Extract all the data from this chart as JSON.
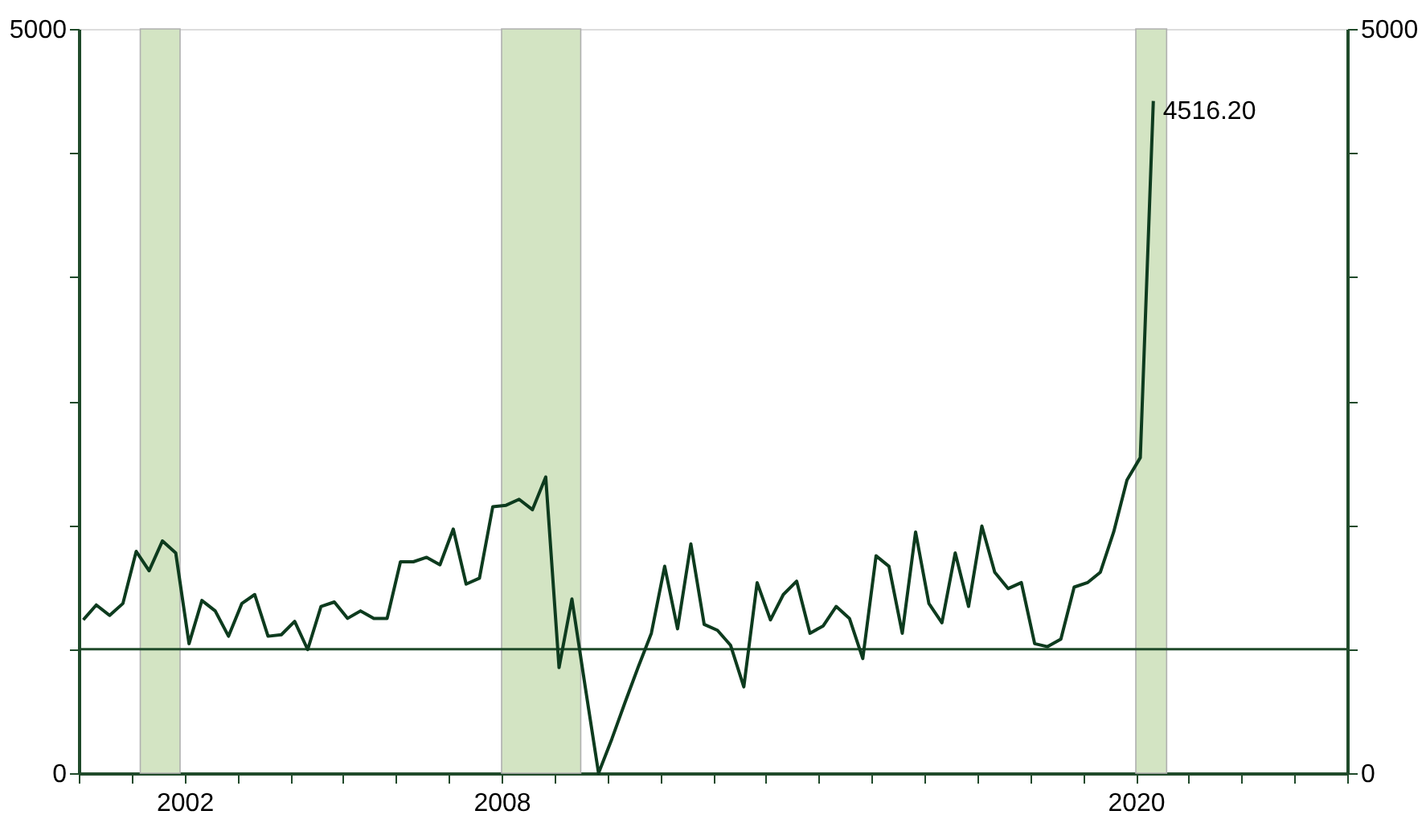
{
  "chart_data": {
    "type": "line",
    "x": [
      "2000-02",
      "2000-05",
      "2000-08",
      "2000-11",
      "2001-02",
      "2001-05",
      "2001-08",
      "2001-11",
      "2002-02",
      "2002-05",
      "2002-08",
      "2002-11",
      "2003-02",
      "2003-05",
      "2003-08",
      "2003-11",
      "2004-02",
      "2004-05",
      "2004-08",
      "2004-11",
      "2005-02",
      "2005-05",
      "2005-08",
      "2005-11",
      "2006-02",
      "2006-05",
      "2006-08",
      "2006-11",
      "2007-02",
      "2007-05",
      "2007-08",
      "2007-11",
      "2008-02",
      "2008-05",
      "2008-08",
      "2008-11",
      "2009-02",
      "2009-05",
      "2009-08",
      "2009-11",
      "2010-02",
      "2010-05",
      "2010-08",
      "2010-11",
      "2011-02",
      "2011-05",
      "2011-08",
      "2011-11",
      "2012-02",
      "2012-05",
      "2012-08",
      "2012-11",
      "2013-02",
      "2013-05",
      "2013-08",
      "2013-11",
      "2014-02",
      "2014-05",
      "2014-08",
      "2014-11",
      "2015-02",
      "2015-05",
      "2015-08",
      "2015-11",
      "2016-02",
      "2016-05",
      "2016-08",
      "2016-11",
      "2017-02",
      "2017-05",
      "2017-08",
      "2017-11",
      "2018-02",
      "2018-05",
      "2018-08",
      "2018-11",
      "2019-02",
      "2019-05",
      "2019-08",
      "2019-11",
      "2020-02",
      "2020-05"
    ],
    "series": [
      {
        "color": "#0d3b1e",
        "values": [
          1030,
          1130,
          1060,
          1140,
          1490,
          1360,
          1560,
          1480,
          870,
          1160,
          1090,
          920,
          1140,
          1200,
          920,
          930,
          1020,
          830,
          1120,
          1150,
          1040,
          1090,
          1040,
          1040,
          1420,
          1420,
          1450,
          1400,
          1640,
          1270,
          1310,
          1790,
          1800,
          1840,
          1770,
          1990,
          710,
          1170,
          580,
          0,
          230,
          470,
          710,
          940,
          1390,
          970,
          1540,
          1000,
          960,
          860,
          580,
          1280,
          1030,
          1200,
          1290,
          940,
          990,
          1120,
          1040,
          770,
          1460,
          1390,
          940,
          1620,
          1140,
          1010,
          1480,
          1120,
          1660,
          1350,
          1240,
          1280,
          870,
          850,
          900,
          1250,
          1280,
          1350,
          1620,
          1970,
          2120,
          4516.2
        ]
      }
    ],
    "xlim": [
      "2000-01-01",
      "2024-01-01"
    ],
    "xticks": [
      {
        "value": "2000",
        "label": null
      },
      {
        "value": "2001",
        "label": null
      },
      "2002",
      {
        "value": "2003",
        "label": null
      },
      {
        "value": "2004",
        "label": null
      },
      {
        "value": "2005",
        "label": null
      },
      {
        "value": "2006",
        "label": null
      },
      {
        "value": "2007",
        "label": null
      },
      "2008",
      {
        "value": "2009",
        "label": null
      },
      {
        "value": "2010",
        "label": null
      },
      {
        "value": "2011",
        "label": null
      },
      {
        "value": "2012",
        "label": null
      },
      {
        "value": "2013",
        "label": null
      },
      {
        "value": "2014",
        "label": null
      },
      {
        "value": "2015",
        "label": null
      },
      {
        "value": "2016",
        "label": null
      },
      {
        "value": "2017",
        "label": null
      },
      {
        "value": "2018",
        "label": null
      },
      {
        "value": "2019",
        "label": null
      },
      "2020",
      {
        "value": "2021",
        "label": null
      },
      {
        "value": "2022",
        "label": null
      },
      {
        "value": "2023",
        "label": null
      },
      {
        "value": "2024",
        "label": null
      }
    ],
    "ylim": [
      0,
      5000
    ],
    "yticks": [
      0,
      {
        "value": 833.33,
        "label": null
      },
      {
        "value": 1666.67,
        "label": null
      },
      {
        "value": 2500,
        "label": null
      },
      {
        "value": 3333.33,
        "label": null
      },
      {
        "value": 4166.67,
        "label": null
      },
      5000
    ],
    "y2lim": [
      0,
      5000
    ],
    "y2ticks": [
      0,
      {
        "value": 833.33,
        "label": null
      },
      {
        "value": 1666.67,
        "label": null
      },
      {
        "value": 2500,
        "label": null
      },
      {
        "value": 3333.33,
        "label": null
      },
      {
        "value": 4166.67,
        "label": null
      },
      5000
    ],
    "ref_lines": [
      {
        "axis": "y",
        "value": 833.33,
        "color": "#1f4a2a"
      }
    ],
    "bands": [
      {
        "axis": "x",
        "from": "2001-03",
        "to": "2001-12",
        "color": "#d3e4c3"
      },
      {
        "axis": "x",
        "from": "2008-01",
        "to": "2009-07",
        "color": "#d3e4c3"
      },
      {
        "axis": "x",
        "from": "2020-01",
        "to": "2020-08",
        "color": "#d3e4c3"
      }
    ],
    "annotations": [
      {
        "text": "4516.20",
        "x": "2020-05",
        "y": 4516.2
      }
    ],
    "grid": false,
    "line_style": "solid",
    "marker": "none"
  }
}
